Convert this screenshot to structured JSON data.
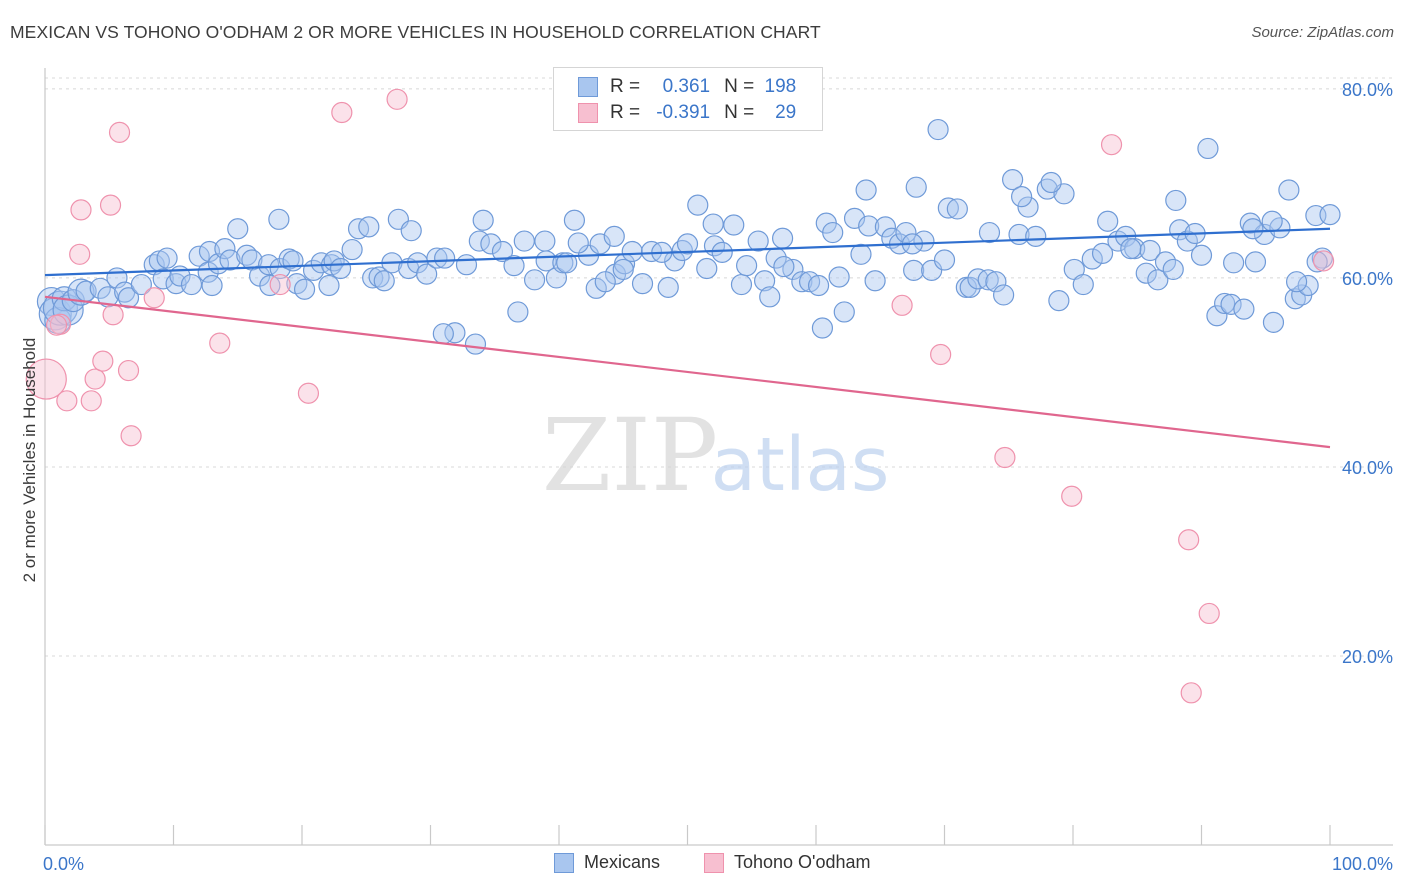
{
  "title": "MEXICAN VS TOHONO O'ODHAM 2 OR MORE VEHICLES IN HOUSEHOLD CORRELATION CHART",
  "source": "Source: ZipAtlas.com",
  "watermark": {
    "zip": "ZIP",
    "atlas": "atlas"
  },
  "legend_top": {
    "rows": [
      {
        "r_label": "R =",
        "r_value": "0.361",
        "n_label": "N =",
        "n_value": "198"
      },
      {
        "r_label": "R =",
        "r_value": "-0.391",
        "n_label": "N =",
        "n_value": "29"
      }
    ]
  },
  "legend_bottom": [
    "Mexicans",
    "Tohono O'odham"
  ],
  "colors": {
    "mexicans_fill": "#a9c6ef",
    "mexicans_stroke": "#6f9ad8",
    "mexicans_line": "#2f6fcf",
    "tohono_fill": "#f7bfd0",
    "tohono_stroke": "#ef92ad",
    "tohono_line": "#e0668e",
    "tick_label": "#3b76c9",
    "grid": "#d8d8d8"
  },
  "chart_data": {
    "type": "scatter",
    "title": "MEXICAN VS TOHONO O'ODHAM 2 OR MORE VEHICLES IN HOUSEHOLD CORRELATION CHART",
    "xlabel": "",
    "ylabel": "2 or more Vehicles in Household",
    "xlim": [
      0,
      100
    ],
    "ylim": [
      0,
      82
    ],
    "x_ticks": [
      "0.0%",
      "100.0%"
    ],
    "y_ticks": [
      {
        "value": 20,
        "label": "20.0%"
      },
      {
        "value": 40,
        "label": "40.0%"
      },
      {
        "value": 60,
        "label": "60.0%"
      },
      {
        "value": 80,
        "label": "80.0%"
      }
    ],
    "grid": "horizontal dashed",
    "series": [
      {
        "name": "Mexicans",
        "r": 0.361,
        "n": 198,
        "trend": {
          "x": [
            0,
            100
          ],
          "y": [
            60.3,
            65.2
          ]
        },
        "points": [
          [
            0.5,
            57.5
          ],
          [
            0.8,
            56.2
          ],
          [
            1.0,
            55.5
          ],
          [
            1.2,
            56.8
          ],
          [
            1.5,
            57.8
          ],
          [
            1.8,
            56.6
          ],
          [
            2.2,
            57.6
          ],
          [
            2.8,
            58.5
          ],
          [
            3.2,
            58.6
          ],
          [
            4.3,
            58.9
          ],
          [
            4.9,
            58.0
          ],
          [
            5.6,
            60.0
          ],
          [
            6.2,
            58.5
          ],
          [
            6.5,
            57.9
          ],
          [
            7.5,
            59.3
          ],
          [
            8.5,
            61.4
          ],
          [
            8.9,
            61.8
          ],
          [
            9.2,
            59.9
          ],
          [
            9.5,
            62.1
          ],
          [
            10.2,
            59.4
          ],
          [
            10.5,
            60.2
          ],
          [
            11.4,
            59.3
          ],
          [
            12.0,
            62.3
          ],
          [
            12.7,
            60.6
          ],
          [
            12.8,
            62.8
          ],
          [
            13.0,
            59.2
          ],
          [
            13.5,
            61.5
          ],
          [
            14.0,
            63.1
          ],
          [
            14.4,
            61.9
          ],
          [
            15.0,
            65.2
          ],
          [
            15.7,
            62.4
          ],
          [
            16.1,
            61.9
          ],
          [
            16.7,
            60.2
          ],
          [
            17.4,
            61.4
          ],
          [
            17.5,
            59.2
          ],
          [
            18.2,
            66.2
          ],
          [
            18.3,
            61.0
          ],
          [
            19.0,
            62.0
          ],
          [
            19.3,
            61.8
          ],
          [
            19.6,
            59.4
          ],
          [
            20.2,
            58.8
          ],
          [
            20.9,
            60.8
          ],
          [
            21.5,
            61.6
          ],
          [
            22.1,
            59.2
          ],
          [
            22.3,
            61.4
          ],
          [
            22.5,
            61.8
          ],
          [
            23.0,
            61.0
          ],
          [
            23.9,
            63.0
          ],
          [
            24.4,
            65.2
          ],
          [
            25.2,
            65.4
          ],
          [
            25.5,
            60.0
          ],
          [
            26.0,
            60.1
          ],
          [
            26.4,
            59.7
          ],
          [
            27.0,
            61.6
          ],
          [
            27.5,
            66.2
          ],
          [
            28.3,
            61.0
          ],
          [
            28.5,
            65.0
          ],
          [
            29.0,
            61.6
          ],
          [
            29.7,
            60.4
          ],
          [
            30.5,
            62.1
          ],
          [
            31.1,
            62.1
          ],
          [
            31.9,
            54.2
          ],
          [
            32.8,
            61.4
          ],
          [
            33.5,
            53.0
          ],
          [
            33.8,
            63.9
          ],
          [
            34.1,
            66.1
          ],
          [
            34.7,
            63.6
          ],
          [
            35.6,
            62.8
          ],
          [
            36.5,
            61.3
          ],
          [
            36.8,
            56.4
          ],
          [
            37.3,
            63.9
          ],
          [
            38.1,
            59.8
          ],
          [
            38.9,
            63.9
          ],
          [
            39.0,
            61.8
          ],
          [
            39.8,
            60.0
          ],
          [
            40.3,
            61.6
          ],
          [
            40.6,
            61.6
          ],
          [
            41.2,
            66.1
          ],
          [
            42.3,
            62.4
          ],
          [
            42.9,
            58.9
          ],
          [
            43.2,
            63.6
          ],
          [
            44.3,
            64.4
          ],
          [
            44.4,
            60.4
          ],
          [
            45.1,
            61.5
          ],
          [
            45.7,
            62.8
          ],
          [
            46.5,
            59.4
          ],
          [
            47.2,
            62.8
          ],
          [
            48.5,
            59.0
          ],
          [
            49.0,
            61.8
          ],
          [
            49.6,
            62.9
          ],
          [
            50.0,
            63.6
          ],
          [
            50.8,
            67.7
          ],
          [
            51.5,
            61.0
          ],
          [
            52.1,
            63.4
          ],
          [
            52.7,
            62.7
          ],
          [
            53.6,
            65.6
          ],
          [
            54.2,
            59.3
          ],
          [
            54.6,
            61.3
          ],
          [
            55.5,
            63.9
          ],
          [
            56.0,
            59.7
          ],
          [
            56.4,
            58.0
          ],
          [
            56.9,
            62.1
          ],
          [
            57.4,
            64.2
          ],
          [
            58.2,
            60.9
          ],
          [
            58.9,
            59.6
          ],
          [
            59.5,
            59.6
          ],
          [
            60.2,
            59.2
          ],
          [
            60.8,
            65.8
          ],
          [
            61.3,
            64.8
          ],
          [
            61.8,
            60.1
          ],
          [
            62.2,
            56.4
          ],
          [
            63.0,
            66.3
          ],
          [
            63.5,
            62.5
          ],
          [
            64.1,
            65.5
          ],
          [
            64.6,
            59.7
          ],
          [
            65.4,
            65.4
          ],
          [
            65.9,
            64.2
          ],
          [
            66.5,
            63.6
          ],
          [
            67.0,
            64.8
          ],
          [
            67.6,
            60.8
          ],
          [
            67.8,
            69.6
          ],
          [
            68.4,
            63.9
          ],
          [
            69.0,
            60.8
          ],
          [
            70.0,
            61.9
          ],
          [
            70.3,
            67.4
          ],
          [
            71.0,
            67.3
          ],
          [
            71.7,
            59.0
          ],
          [
            72.0,
            59.0
          ],
          [
            72.6,
            59.9
          ],
          [
            73.4,
            59.8
          ],
          [
            74.0,
            59.6
          ],
          [
            74.6,
            58.2
          ],
          [
            75.3,
            70.4
          ],
          [
            75.8,
            64.6
          ],
          [
            76.5,
            67.5
          ],
          [
            77.1,
            64.4
          ],
          [
            78.0,
            69.4
          ],
          [
            78.9,
            57.6
          ],
          [
            79.3,
            68.9
          ],
          [
            80.1,
            60.9
          ],
          [
            80.8,
            59.3
          ],
          [
            81.5,
            62.0
          ],
          [
            82.3,
            62.6
          ],
          [
            82.7,
            66.0
          ],
          [
            83.5,
            63.9
          ],
          [
            84.1,
            64.4
          ],
          [
            84.8,
            63.1
          ],
          [
            85.7,
            60.5
          ],
          [
            86.0,
            62.9
          ],
          [
            86.6,
            59.8
          ],
          [
            87.2,
            61.7
          ],
          [
            87.8,
            60.9
          ],
          [
            88.3,
            65.1
          ],
          [
            88.9,
            63.9
          ],
          [
            89.5,
            64.7
          ],
          [
            90.0,
            62.4
          ],
          [
            91.2,
            56.0
          ],
          [
            91.8,
            57.3
          ],
          [
            92.3,
            57.2
          ],
          [
            93.3,
            56.7
          ],
          [
            93.8,
            65.8
          ],
          [
            94.2,
            61.7
          ],
          [
            94.9,
            64.6
          ],
          [
            95.6,
            55.3
          ],
          [
            96.1,
            65.3
          ],
          [
            96.8,
            69.3
          ],
          [
            97.3,
            57.8
          ],
          [
            97.8,
            58.2
          ],
          [
            98.3,
            59.2
          ],
          [
            98.9,
            66.6
          ],
          [
            99.4,
            62.1
          ],
          [
            100.0,
            66.7
          ],
          [
            31.0,
            54.1
          ],
          [
            41.5,
            63.7
          ],
          [
            45.0,
            60.9
          ],
          [
            57.5,
            61.2
          ],
          [
            60.5,
            54.7
          ],
          [
            63.9,
            69.3
          ],
          [
            67.5,
            63.6
          ],
          [
            69.5,
            75.7
          ],
          [
            73.5,
            64.8
          ],
          [
            76.0,
            68.6
          ],
          [
            78.3,
            70.1
          ],
          [
            84.5,
            63.1
          ],
          [
            88.0,
            68.2
          ],
          [
            90.5,
            73.7
          ],
          [
            92.5,
            61.6
          ],
          [
            94.0,
            65.2
          ],
          [
            95.5,
            66.0
          ],
          [
            97.4,
            59.6
          ],
          [
            99.0,
            61.7
          ],
          [
            52.0,
            65.7
          ],
          [
            48.0,
            62.7
          ],
          [
            43.6,
            59.6
          ]
        ]
      },
      {
        "name": "Tohono O'odham",
        "r": -0.391,
        "n": 29,
        "trend": {
          "x": [
            0,
            100
          ],
          "y": [
            58.0,
            42.1
          ]
        },
        "points": [
          [
            0.1,
            49.3
          ],
          [
            1.2,
            55.1
          ],
          [
            1.7,
            47.0
          ],
          [
            2.7,
            62.5
          ],
          [
            2.8,
            67.2
          ],
          [
            3.6,
            47.0
          ],
          [
            3.9,
            49.3
          ],
          [
            4.5,
            51.2
          ],
          [
            5.1,
            67.7
          ],
          [
            5.3,
            56.1
          ],
          [
            5.8,
            75.4
          ],
          [
            6.5,
            50.2
          ],
          [
            6.7,
            43.3
          ],
          [
            8.5,
            57.9
          ],
          [
            13.6,
            53.1
          ],
          [
            18.3,
            59.3
          ],
          [
            20.5,
            47.8
          ],
          [
            23.1,
            77.5
          ],
          [
            27.4,
            78.9
          ],
          [
            66.7,
            57.1
          ],
          [
            69.7,
            51.9
          ],
          [
            74.7,
            41.0
          ],
          [
            79.9,
            36.9
          ],
          [
            83.0,
            74.1
          ],
          [
            89.0,
            32.3
          ],
          [
            89.2,
            16.1
          ],
          [
            90.6,
            24.5
          ],
          [
            99.5,
            61.8
          ],
          [
            0.9,
            55.0
          ]
        ]
      }
    ]
  }
}
